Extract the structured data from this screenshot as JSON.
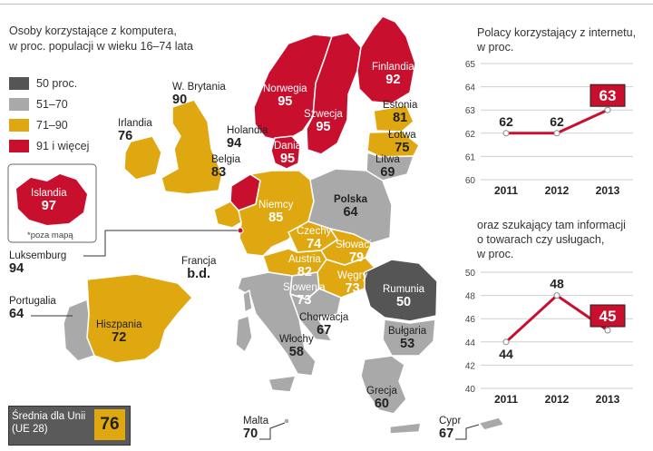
{
  "map": {
    "title_line1": "Osoby korzystające z komputera,",
    "title_line2": "w proc. populacji w wieku 16–74 lata",
    "legend": [
      {
        "label": "50 proc.",
        "color": "#555555"
      },
      {
        "label": "51–70",
        "color": "#a9a9a9"
      },
      {
        "label": "71–90",
        "color": "#e0a810"
      },
      {
        "label": "91 i więcej",
        "color": "#c8102e"
      }
    ],
    "countries": {
      "finland": {
        "name": "Finlandia",
        "value": "92"
      },
      "norway": {
        "name": "Norwegia",
        "value": "95"
      },
      "sweden": {
        "name": "Szwecja",
        "value": "95"
      },
      "denmark": {
        "name": "Dania",
        "value": "95"
      },
      "estonia": {
        "name": "Estonia",
        "value": "81"
      },
      "latvia": {
        "name": "Łotwa",
        "value": "75"
      },
      "lithuania": {
        "name": "Litwa",
        "value": "69"
      },
      "uk": {
        "name": "W. Brytania",
        "value": "90"
      },
      "ireland": {
        "name": "Irlandia",
        "value": "76"
      },
      "netherlands": {
        "name": "Holandia",
        "value": "94"
      },
      "belgium": {
        "name": "Belgia",
        "value": "83"
      },
      "germany": {
        "name": "Niemcy",
        "value": "85"
      },
      "poland": {
        "name": "Polska",
        "value": "64"
      },
      "czechia": {
        "name": "Czechy",
        "value": "74"
      },
      "slovakia": {
        "name": "Słowacja",
        "value": "79"
      },
      "austria": {
        "name": "Austria",
        "value": "82"
      },
      "hungary": {
        "name": "Węgry",
        "value": "73"
      },
      "slovenia": {
        "name": "Słowenia",
        "value": "73"
      },
      "romania": {
        "name": "Rumunia",
        "value": "50"
      },
      "croatia": {
        "name": "Chorwacja",
        "value": "67"
      },
      "bulgaria": {
        "name": "Bułgaria",
        "value": "53"
      },
      "italy": {
        "name": "Włochy",
        "value": "58"
      },
      "greece": {
        "name": "Grecja",
        "value": "60"
      },
      "spain": {
        "name": "Hiszpania",
        "value": "72"
      },
      "portugal": {
        "name": "Portugalia",
        "value": "64"
      },
      "france": {
        "name": "Francja",
        "value": "b.d."
      },
      "luxembourg": {
        "name": "Luksemburg",
        "value": "94"
      },
      "malta": {
        "name": "Malta",
        "value": "70"
      },
      "cyprus": {
        "name": "Cypr",
        "value": "67"
      },
      "iceland": {
        "name": "Islandia",
        "value": "97"
      }
    },
    "iceland_note": "*poza mapą",
    "eu_average": {
      "label_line1": "Średnia dla Unii",
      "label_line2": "(UE 28)",
      "value": "76"
    }
  },
  "chart_data": [
    {
      "type": "line",
      "title_line1": "Polacy korzystający z internetu,",
      "title_line2": "w proc.",
      "categories": [
        "2011",
        "2012",
        "2013"
      ],
      "values": [
        62,
        62,
        63
      ],
      "value_labels": [
        "62",
        "62",
        "63"
      ],
      "highlight_last": true,
      "ylim": [
        60,
        65
      ],
      "yticks": [
        60,
        61,
        62,
        63,
        64,
        65
      ],
      "ytick_labels": [
        "60",
        "61",
        "62",
        "63",
        "64",
        "65"
      ],
      "line_color": "#c8102e",
      "grid": true
    },
    {
      "type": "line",
      "title_line1": "oraz szukający tam informacji",
      "title_line2": "o towarach czy usługach,",
      "title_line3": "w proc.",
      "categories": [
        "2011",
        "2012",
        "2013"
      ],
      "values": [
        44,
        48,
        45
      ],
      "value_labels": [
        "44",
        "48",
        "45"
      ],
      "highlight_last": true,
      "ylim": [
        40,
        50
      ],
      "yticks": [
        40,
        42,
        44,
        46,
        48,
        50
      ],
      "ytick_labels": [
        "40",
        "42",
        "44",
        "46",
        "48",
        "50"
      ],
      "line_color": "#c8102e",
      "grid": true
    }
  ]
}
